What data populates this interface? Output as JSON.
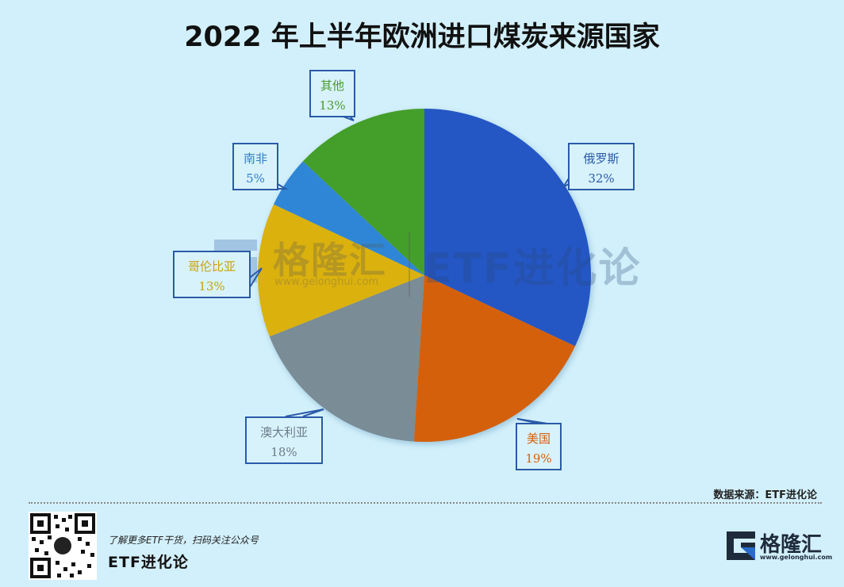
{
  "title": "2022 年上半年欧洲进口煤炭来源国家",
  "chart_data": {
    "type": "pie",
    "title": "2022 年上半年欧洲进口煤炭来源国家",
    "start_angle": "12 o'clock, clockwise",
    "categories": [
      "俄罗斯",
      "美国",
      "澳大利亚",
      "哥伦比亚",
      "南非",
      "其他"
    ],
    "values": [
      32,
      19,
      18,
      13,
      5,
      13
    ],
    "unit": "%",
    "colors": [
      "#2456c4",
      "#d4600c",
      "#7a8c96",
      "#dbb10e",
      "#2f86d6",
      "#449e2a"
    ],
    "labels": [
      {
        "name": "俄罗斯",
        "pct": "32%",
        "color": "#2a5aa8"
      },
      {
        "name": "美国",
        "pct": "19%",
        "color": "#d4600c"
      },
      {
        "name": "澳大利亚",
        "pct": "18%",
        "color": "#6b7c86"
      },
      {
        "name": "哥伦比亚",
        "pct": "13%",
        "color": "#c9a20a"
      },
      {
        "name": "南非",
        "pct": "5%",
        "color": "#2f7fcc"
      },
      {
        "name": "其他",
        "pct": "13%",
        "color": "#4a9a2a"
      }
    ]
  },
  "watermark": {
    "brand": "格隆汇",
    "url": "www.gelonghui.com",
    "channel": "ETF进化论"
  },
  "footer": {
    "source": "数据来源：ETF进化论",
    "tagline": "了解更多ETF干货，扫码关注公众号",
    "brand": "ETF进化论",
    "logo_text": "格隆汇",
    "logo_url": "www.gelonghui.com"
  }
}
